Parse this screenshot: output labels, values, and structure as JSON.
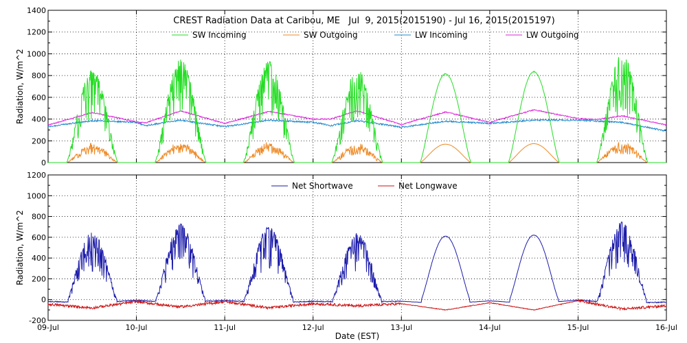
{
  "title": "CREST Radiation Data at Caribou, ME   Jul  9, 2015(2015190) - Jul 16, 2015(2015197)",
  "xlabel": "Date (EST)",
  "x_ticks": [
    "09-Jul",
    "10-Jul",
    "11-Jul",
    "12-Jul",
    "13-Jul",
    "14-Jul",
    "15-Jul",
    "16-Jul"
  ],
  "colors": {
    "sw_in": "#22dd22",
    "sw_out": "#ee8822",
    "lw_in": "#2288cc",
    "lw_out": "#dd22dd",
    "net_sw": "#1a1aaa",
    "net_lw": "#cc1111"
  },
  "chart_data": [
    {
      "type": "line",
      "ylabel": "Radiation, W/m^2",
      "xlim": [
        9,
        16
      ],
      "ylim": [
        0,
        1400
      ],
      "yticks": [
        0,
        200,
        400,
        600,
        800,
        1000,
        1200,
        1400
      ],
      "grid": true,
      "legend": "top-center",
      "days": [
        {
          "peak_in": 850,
          "noisy": true,
          "peak_out": 180
        },
        {
          "peak_in": 950,
          "noisy": true,
          "peak_out": 195
        },
        {
          "peak_in": 930,
          "noisy": true,
          "peak_out": 190
        },
        {
          "peak_in": 860,
          "noisy": true,
          "peak_out": 185
        },
        {
          "peak_in": 820,
          "noisy": false,
          "peak_out": 170
        },
        {
          "peak_in": 840,
          "noisy": false,
          "peak_out": 175
        },
        {
          "peak_in": 1000,
          "noisy": true,
          "peak_out": 205
        }
      ],
      "series": [
        {
          "name": "SW Incoming",
          "key": "sw_in"
        },
        {
          "name": "SW Outgoing",
          "key": "sw_out"
        },
        {
          "name": "LW Incoming",
          "key": "lw_in",
          "anchors": [
            [
              9.0,
              330
            ],
            [
              9.5,
              385
            ],
            [
              10.0,
              370
            ],
            [
              10.1,
              340
            ],
            [
              10.5,
              390
            ],
            [
              11.0,
              330
            ],
            [
              11.5,
              390
            ],
            [
              12.0,
              370
            ],
            [
              12.2,
              340
            ],
            [
              12.5,
              385
            ],
            [
              13.0,
              325
            ],
            [
              13.5,
              380
            ],
            [
              14.0,
              360
            ],
            [
              14.5,
              390
            ],
            [
              15.0,
              390
            ],
            [
              15.5,
              370
            ],
            [
              16.0,
              290
            ]
          ]
        },
        {
          "name": "LW Outgoing",
          "key": "lw_out",
          "anchors": [
            [
              9.0,
              345
            ],
            [
              9.5,
              460
            ],
            [
              10.0,
              375
            ],
            [
              10.1,
              365
            ],
            [
              10.5,
              475
            ],
            [
              11.0,
              360
            ],
            [
              11.5,
              470
            ],
            [
              12.0,
              400
            ],
            [
              12.2,
              400
            ],
            [
              12.5,
              475
            ],
            [
              13.0,
              350
            ],
            [
              13.5,
              465
            ],
            [
              14.0,
              370
            ],
            [
              14.5,
              485
            ],
            [
              15.0,
              405
            ],
            [
              15.2,
              395
            ],
            [
              15.5,
              430
            ],
            [
              16.0,
              345
            ]
          ]
        }
      ]
    },
    {
      "type": "line",
      "ylabel": "Radiation, W/m^2",
      "xlim": [
        9,
        16
      ],
      "ylim": [
        -200,
        1200
      ],
      "yticks": [
        -200,
        0,
        200,
        400,
        600,
        800,
        1000,
        1200
      ],
      "grid": true,
      "legend": "top-center",
      "net_sw_peaks": [
        680,
        750,
        730,
        660,
        650,
        660,
        780
      ],
      "net_lw_anchors": [
        [
          9.0,
          -45
        ],
        [
          9.5,
          -80
        ],
        [
          10.0,
          -20
        ],
        [
          10.5,
          -70
        ],
        [
          11.0,
          -20
        ],
        [
          11.5,
          -80
        ],
        [
          12.0,
          -40
        ],
        [
          12.5,
          -60
        ],
        [
          13.0,
          -40
        ],
        [
          13.5,
          -100
        ],
        [
          14.0,
          -30
        ],
        [
          14.5,
          -100
        ],
        [
          15.0,
          -10
        ],
        [
          15.5,
          -90
        ],
        [
          16.0,
          -60
        ]
      ],
      "series": [
        {
          "name": "Net Shortwave",
          "key": "net_sw"
        },
        {
          "name": "Net Longwave",
          "key": "net_lw"
        }
      ]
    }
  ]
}
